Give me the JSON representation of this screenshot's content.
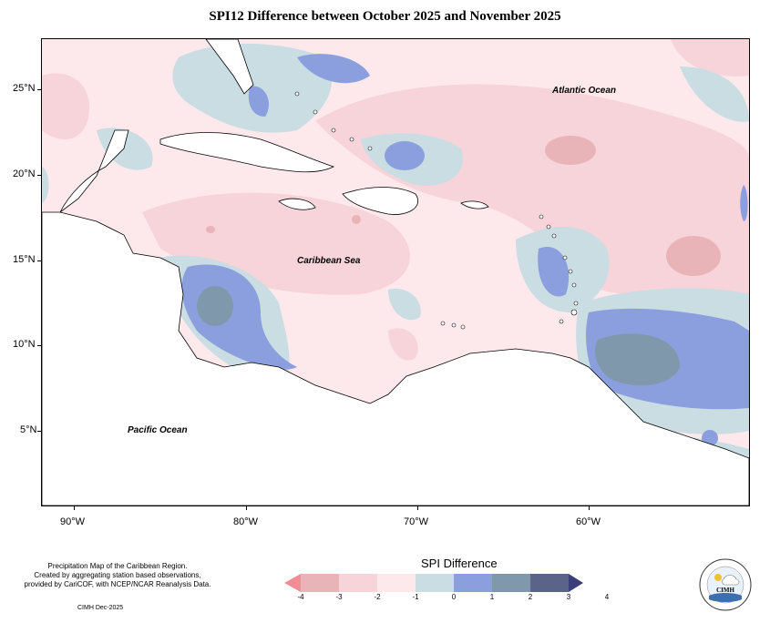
{
  "title": "SPI12 Difference between October 2025 and November 2025",
  "labels": {
    "atlantic": "Atlantic Ocean",
    "caribbean": "Caribbean Sea",
    "pacific": "Pacific Ocean"
  },
  "axes": {
    "x_ticks": [
      "90°W",
      "80°W",
      "70°W",
      "60°W"
    ],
    "y_ticks": [
      "25°N",
      "20°N",
      "15°N",
      "10°N",
      "5°N"
    ]
  },
  "footer": {
    "line1": "Precipitation Map of the Caribbean Region.",
    "line2": "Created by aggregating station based observations,",
    "line3": "provided by CariCOF, with NCEP/NCAR Reanalysis Data.",
    "credit": "CIMH Dec-2025"
  },
  "legend": {
    "title": "SPI Difference",
    "labels": [
      "-4",
      "-3",
      "-2",
      "-1",
      "0",
      "1",
      "2",
      "3",
      "4"
    ],
    "colors": [
      "#f08c93",
      "#e8b4b8",
      "#f7d3da",
      "#fde9ec",
      "#c9dde3",
      "#8b9fde",
      "#7f98ab",
      "#5a6488",
      "#3a3f7a"
    ]
  },
  "logo": {
    "text": "CIMH"
  }
}
